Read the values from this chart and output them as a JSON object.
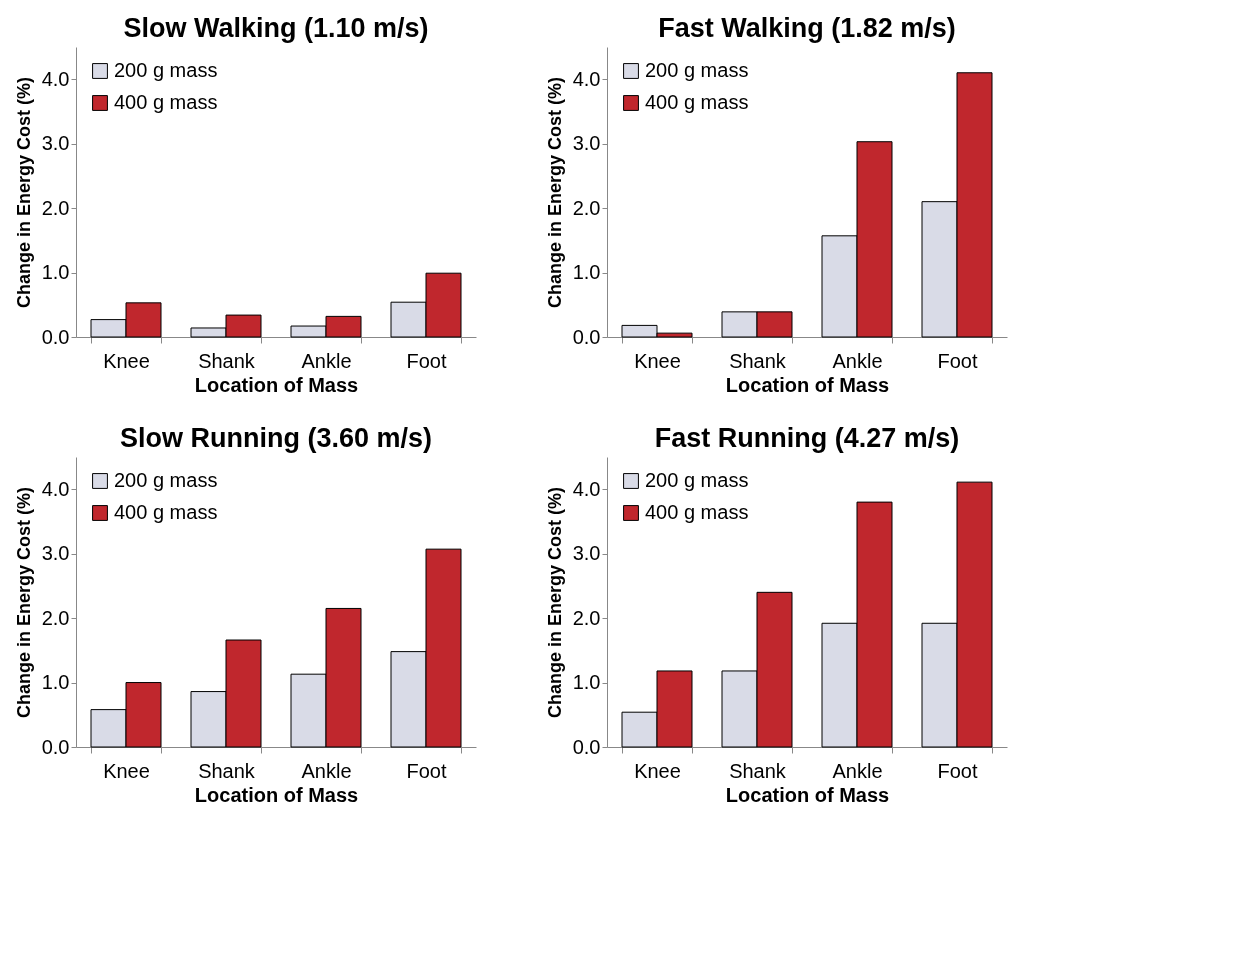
{
  "chart_data": [
    {
      "type": "bar",
      "title": "Slow Walking (1.10 m/s)",
      "xlabel": "Location of Mass",
      "ylabel": "Change in Energy Cost (%)",
      "categories": [
        "Knee",
        "Shank",
        "Ankle",
        "Foot"
      ],
      "ylim": [
        0,
        4.5
      ],
      "yticks": [
        {
          "value": 0,
          "label": "0.0"
        },
        {
          "value": 1,
          "label": "1.0"
        },
        {
          "value": 2,
          "label": "2.0"
        },
        {
          "value": 3,
          "label": "3.0"
        },
        {
          "value": 4,
          "label": "4.0"
        }
      ],
      "grid": false,
      "legend": "top left",
      "series": [
        {
          "name": "200 g mass",
          "color": "#d9dbe7",
          "values": [
            0.27,
            0.14,
            0.17,
            0.54
          ]
        },
        {
          "name": "400 g mass",
          "color": "#c0272d",
          "values": [
            0.53,
            0.34,
            0.32,
            0.99
          ]
        }
      ]
    },
    {
      "type": "bar",
      "title": "Fast Walking (1.82 m/s)",
      "xlabel": "Location of Mass",
      "ylabel": "Change in Energy Cost (%)",
      "categories": [
        "Knee",
        "Shank",
        "Ankle",
        "Foot"
      ],
      "ylim": [
        0,
        4.5
      ],
      "yticks": [
        {
          "value": 0,
          "label": "0.0"
        },
        {
          "value": 1,
          "label": "1.0"
        },
        {
          "value": 2,
          "label": "2.0"
        },
        {
          "value": 3,
          "label": "3.0"
        },
        {
          "value": 4,
          "label": "4.0"
        }
      ],
      "grid": false,
      "legend": "top left",
      "series": [
        {
          "name": "200 g mass",
          "color": "#d9dbe7",
          "values": [
            0.18,
            0.39,
            1.57,
            2.1
          ]
        },
        {
          "name": "400 g mass",
          "color": "#c0272d",
          "values": [
            0.06,
            0.39,
            3.03,
            4.1
          ]
        }
      ]
    },
    {
      "type": "bar",
      "title": "Slow Running (3.60 m/s)",
      "xlabel": "Location of Mass",
      "ylabel": "Change in Energy Cost (%)",
      "categories": [
        "Knee",
        "Shank",
        "Ankle",
        "Foot"
      ],
      "ylim": [
        0,
        4.5
      ],
      "yticks": [
        {
          "value": 0,
          "label": "0.0"
        },
        {
          "value": 1,
          "label": "1.0"
        },
        {
          "value": 2,
          "label": "2.0"
        },
        {
          "value": 3,
          "label": "3.0"
        },
        {
          "value": 4,
          "label": "4.0"
        }
      ],
      "grid": false,
      "legend": "top left",
      "series": [
        {
          "name": "200 g mass",
          "color": "#d9dbe7",
          "values": [
            0.58,
            0.86,
            1.13,
            1.48
          ]
        },
        {
          "name": "400 g mass",
          "color": "#c0272d",
          "values": [
            1.0,
            1.66,
            2.15,
            3.07
          ]
        }
      ]
    },
    {
      "type": "bar",
      "title": "Fast Running (4.27 m/s)",
      "xlabel": "Location of Mass",
      "ylabel": "Change in Energy Cost (%)",
      "categories": [
        "Knee",
        "Shank",
        "Ankle",
        "Foot"
      ],
      "ylim": [
        0,
        4.5
      ],
      "yticks": [
        {
          "value": 0,
          "label": "0.0"
        },
        {
          "value": 1,
          "label": "1.0"
        },
        {
          "value": 2,
          "label": "2.0"
        },
        {
          "value": 3,
          "label": "3.0"
        },
        {
          "value": 4,
          "label": "4.0"
        }
      ],
      "grid": false,
      "legend": "top left",
      "series": [
        {
          "name": "200 g mass",
          "color": "#d9dbe7",
          "values": [
            0.54,
            1.18,
            1.92,
            1.92
          ]
        },
        {
          "name": "400 g mass",
          "color": "#c0272d",
          "values": [
            1.18,
            2.4,
            3.8,
            4.11
          ]
        }
      ]
    }
  ]
}
